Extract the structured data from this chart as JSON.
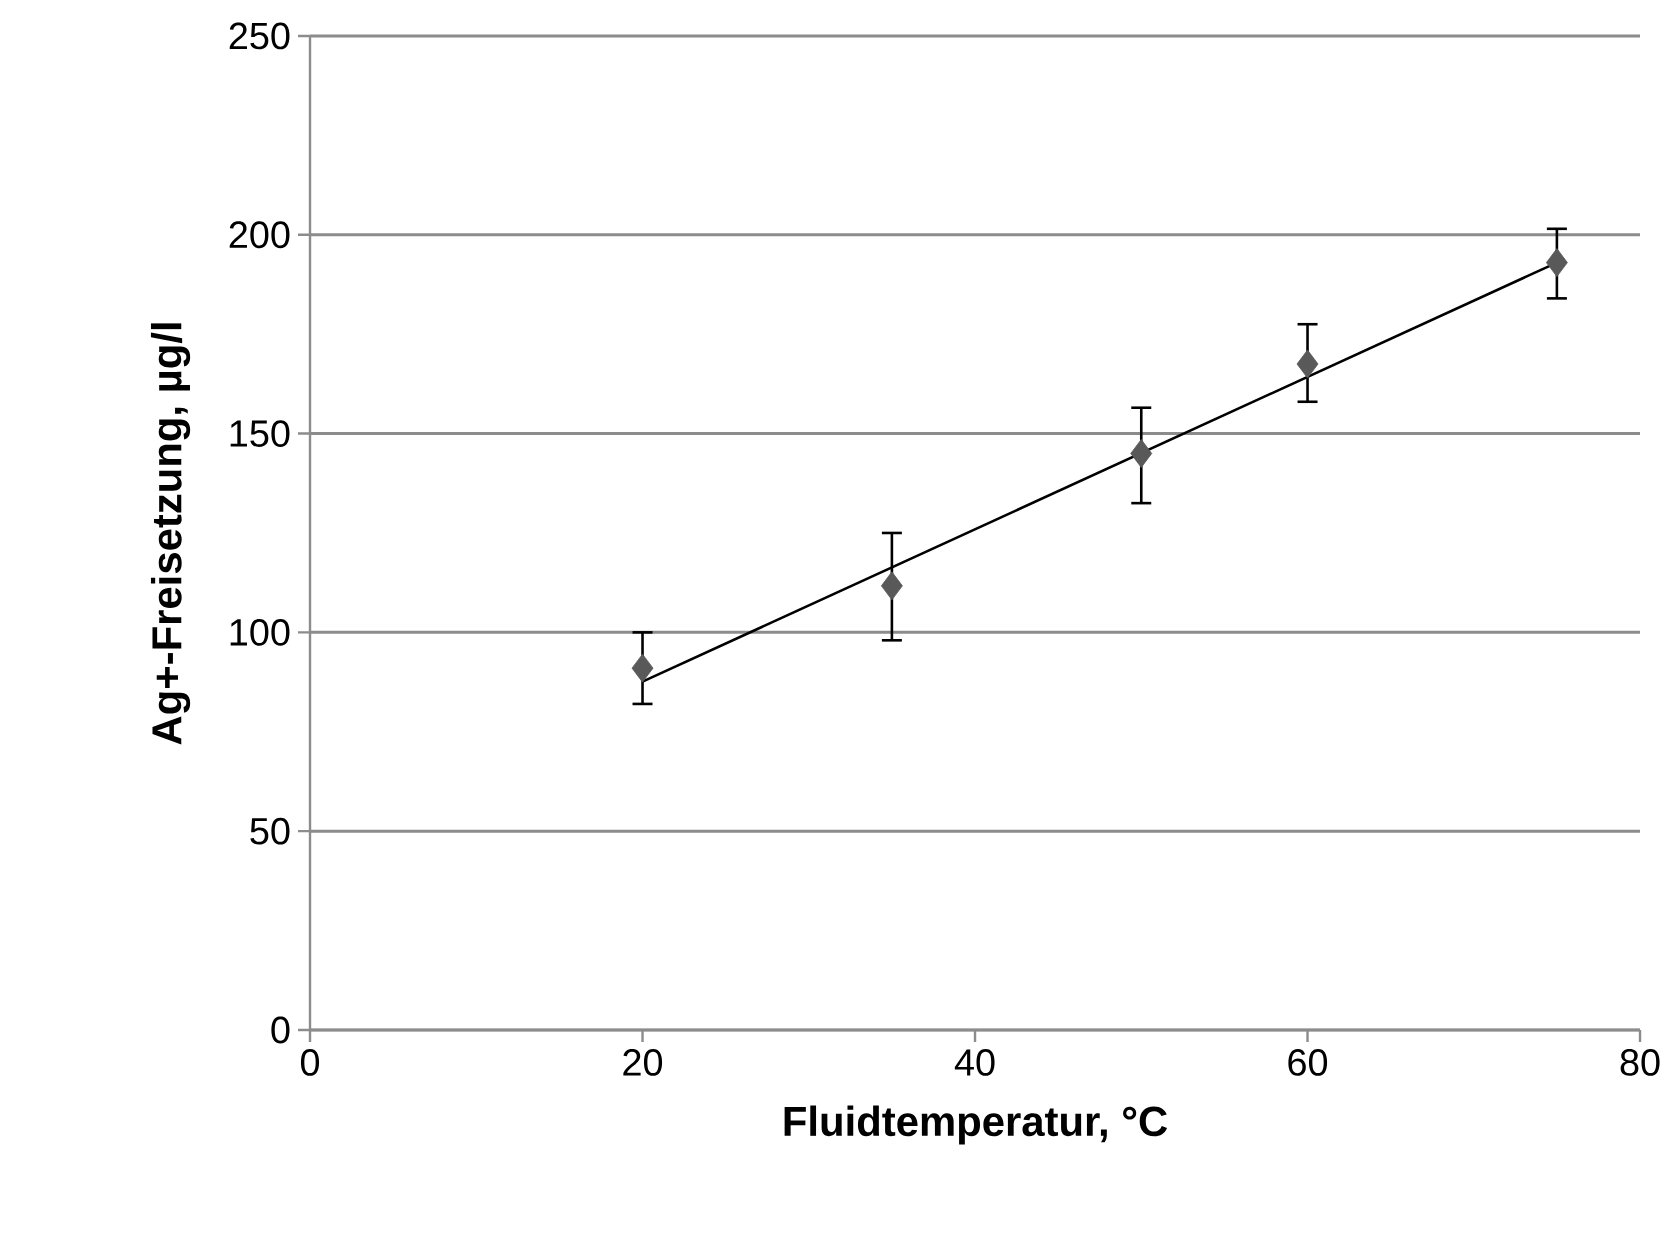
{
  "chart_data": {
    "type": "scatter",
    "xlabel": "Fluidtemperatur, °C",
    "ylabel": "Ag+-Freisetzung, µg/l",
    "xlim": [
      0,
      80
    ],
    "ylim": [
      0,
      250
    ],
    "xticks": [
      0,
      20,
      40,
      60,
      80
    ],
    "yticks": [
      0,
      50,
      100,
      150,
      200,
      250
    ],
    "grid": "y",
    "marker": "diamond",
    "series": [
      {
        "color": "#595959",
        "x": [
          20,
          35,
          50,
          60,
          75
        ],
        "values": [
          91,
          111.7,
          145,
          167.5,
          193
        ],
        "errors": [
          [
            82,
            100
          ],
          [
            98,
            125
          ],
          [
            132.5,
            156.5
          ],
          [
            158,
            177.5
          ],
          [
            184,
            201.5
          ]
        ]
      },
      {
        "type": "line",
        "color": "#000000",
        "marker": "none",
        "line_style": "solid",
        "x": [
          20,
          75
        ],
        "values": [
          87.6,
          193
        ]
      }
    ]
  }
}
